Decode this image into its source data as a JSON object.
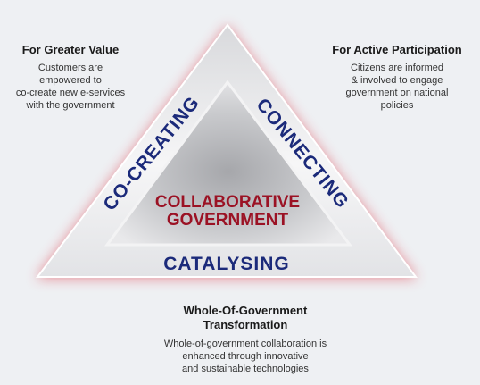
{
  "diagram": {
    "center_line1": "COLLABORATIVE",
    "center_line2": "GOVERNMENT",
    "side_left": "CO-CREATING",
    "side_right": "CONNECTING",
    "side_bottom": "CATALYSING"
  },
  "panels": {
    "left": {
      "title": "For Greater Value",
      "body": "Customers are\nempowered to\nco-create new e-services\nwith the government"
    },
    "right": {
      "title": "For Active Participation",
      "body": "Citizens are informed\n& involved to engage\ngovernment on national\npolicies"
    },
    "bottom": {
      "title": "Whole-Of-Government\nTransformation",
      "body": "Whole-of-government collaboration is\nenhanced through innovative\nand sustainable technologies"
    }
  },
  "colors": {
    "background": "#eef0f3",
    "side_text": "#1b2a7a",
    "center_text": "#9b1224",
    "glow": "#e03a4a"
  }
}
